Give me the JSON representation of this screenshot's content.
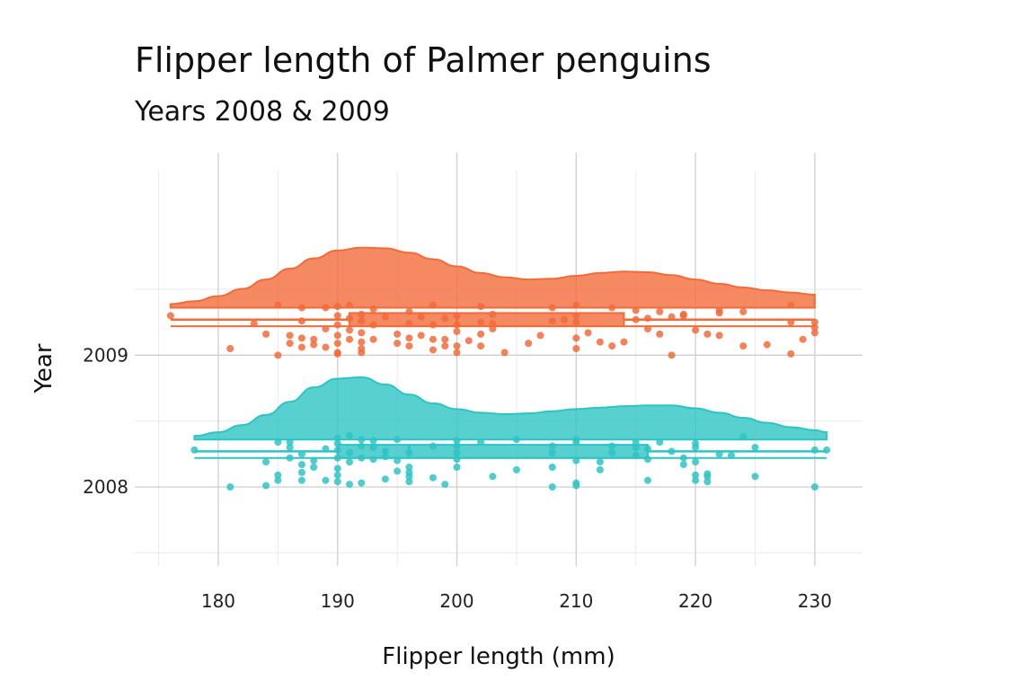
{
  "chart_data": {
    "type": "raincloud",
    "title": "Flipper length of Palmer penguins",
    "subtitle": "Years 2008 & 2009",
    "xlabel": "Flipper length (mm)",
    "ylabel": "Year",
    "xlim": [
      173,
      234
    ],
    "x_ticks": [
      180,
      190,
      200,
      210,
      220,
      230
    ],
    "categories": [
      "2008",
      "2009"
    ],
    "grid": true,
    "colors": {
      "2008": "#2ec4c4",
      "2009": "#f26b3a"
    },
    "series": [
      {
        "name": "2008",
        "color": "#2ec4c4",
        "box": {
          "min": 178,
          "q1": 190,
          "median": 196,
          "q3": 216,
          "max": 231
        },
        "density": [
          [
            178,
            0.05
          ],
          [
            180,
            0.1
          ],
          [
            182,
            0.2
          ],
          [
            184,
            0.34
          ],
          [
            186,
            0.52
          ],
          [
            188,
            0.72
          ],
          [
            190,
            0.84
          ],
          [
            192,
            0.86
          ],
          [
            194,
            0.76
          ],
          [
            196,
            0.62
          ],
          [
            198,
            0.5
          ],
          [
            200,
            0.42
          ],
          [
            202,
            0.37
          ],
          [
            204,
            0.35
          ],
          [
            206,
            0.36
          ],
          [
            208,
            0.39
          ],
          [
            210,
            0.42
          ],
          [
            212,
            0.44
          ],
          [
            214,
            0.46
          ],
          [
            216,
            0.47
          ],
          [
            218,
            0.47
          ],
          [
            220,
            0.43
          ],
          [
            222,
            0.37
          ],
          [
            224,
            0.3
          ],
          [
            226,
            0.23
          ],
          [
            228,
            0.17
          ],
          [
            230,
            0.13
          ],
          [
            231,
            0.1
          ]
        ],
        "points": [
          [
            178,
            0.28
          ],
          [
            181,
            0.0
          ],
          [
            184,
            0.19
          ],
          [
            184,
            0.01
          ],
          [
            185,
            0.34
          ],
          [
            185,
            0.09
          ],
          [
            185,
            0.05
          ],
          [
            186,
            0.3
          ],
          [
            186,
            0.22
          ],
          [
            186,
            0.34
          ],
          [
            187,
            0.25
          ],
          [
            187,
            0.17
          ],
          [
            187,
            0.11
          ],
          [
            187,
            0.05
          ],
          [
            188,
            0.2
          ],
          [
            188,
            0.15
          ],
          [
            189,
            0.29
          ],
          [
            189,
            0.05
          ],
          [
            190,
            0.37
          ],
          [
            190,
            0.33
          ],
          [
            190,
            0.28
          ],
          [
            190,
            0.22
          ],
          [
            190,
            0.14
          ],
          [
            190,
            0.09
          ],
          [
            190,
            0.04
          ],
          [
            191,
            0.39
          ],
          [
            191,
            0.19
          ],
          [
            191,
            0.26
          ],
          [
            191,
            0.02
          ],
          [
            192,
            0.31
          ],
          [
            192,
            0.36
          ],
          [
            192,
            0.22
          ],
          [
            192,
            0.03
          ],
          [
            193,
            0.35
          ],
          [
            193,
            0.21
          ],
          [
            193,
            0.3
          ],
          [
            194,
            0.27
          ],
          [
            194,
            0.23
          ],
          [
            194,
            0.06
          ],
          [
            195,
            0.36
          ],
          [
            195,
            0.2
          ],
          [
            195,
            0.12
          ],
          [
            196,
            0.26
          ],
          [
            196,
            0.15
          ],
          [
            196,
            0.04
          ],
          [
            196,
            0.08
          ],
          [
            196,
            0.11
          ],
          [
            198,
            0.31
          ],
          [
            198,
            0.07
          ],
          [
            199,
            0.02
          ],
          [
            200,
            0.35
          ],
          [
            200,
            0.31
          ],
          [
            200,
            0.26
          ],
          [
            200,
            0.21
          ],
          [
            200,
            0.15
          ],
          [
            202,
            0.34
          ],
          [
            203,
            0.08
          ],
          [
            205,
            0.36
          ],
          [
            205,
            0.13
          ],
          [
            208,
            0.31
          ],
          [
            208,
            0.26
          ],
          [
            208,
            0.15
          ],
          [
            208,
            0.0
          ],
          [
            210,
            0.36
          ],
          [
            210,
            0.34
          ],
          [
            210,
            0.2
          ],
          [
            210,
            0.03
          ],
          [
            210,
            0.01
          ],
          [
            212,
            0.19
          ],
          [
            212,
            0.13
          ],
          [
            213,
            0.26
          ],
          [
            213,
            0.31
          ],
          [
            215,
            0.3
          ],
          [
            215,
            0.34
          ],
          [
            215,
            0.24
          ],
          [
            216,
            0.29
          ],
          [
            216,
            0.21
          ],
          [
            216,
            0.05
          ],
          [
            217,
            0.34
          ],
          [
            218,
            0.27
          ],
          [
            219,
            0.22
          ],
          [
            219,
            0.17
          ],
          [
            220,
            0.33
          ],
          [
            220,
            0.3
          ],
          [
            220,
            0.19
          ],
          [
            220,
            0.09
          ],
          [
            220,
            0.05
          ],
          [
            221,
            0.1
          ],
          [
            221,
            0.08
          ],
          [
            221,
            0.04
          ],
          [
            222,
            0.25
          ],
          [
            223,
            0.24
          ],
          [
            224,
            0.38
          ],
          [
            225,
            0.3
          ],
          [
            225,
            0.08
          ],
          [
            230,
            0.28
          ],
          [
            230,
            0.0
          ],
          [
            231,
            0.28
          ]
        ]
      },
      {
        "name": "2009",
        "color": "#f26b3a",
        "box": {
          "min": 176,
          "q1": 191,
          "median": 200,
          "q3": 214,
          "max": 230
        },
        "density": [
          [
            176,
            0.05
          ],
          [
            178,
            0.09
          ],
          [
            180,
            0.16
          ],
          [
            182,
            0.26
          ],
          [
            184,
            0.39
          ],
          [
            186,
            0.54
          ],
          [
            188,
            0.68
          ],
          [
            190,
            0.79
          ],
          [
            192,
            0.83
          ],
          [
            194,
            0.82
          ],
          [
            196,
            0.76
          ],
          [
            198,
            0.67
          ],
          [
            200,
            0.57
          ],
          [
            202,
            0.48
          ],
          [
            204,
            0.42
          ],
          [
            206,
            0.39
          ],
          [
            208,
            0.4
          ],
          [
            210,
            0.44
          ],
          [
            212,
            0.48
          ],
          [
            214,
            0.5
          ],
          [
            216,
            0.49
          ],
          [
            218,
            0.45
          ],
          [
            220,
            0.39
          ],
          [
            222,
            0.33
          ],
          [
            224,
            0.28
          ],
          [
            226,
            0.24
          ],
          [
            228,
            0.21
          ],
          [
            230,
            0.18
          ]
        ],
        "points": [
          [
            176,
            0.3
          ],
          [
            181,
            0.05
          ],
          [
            183,
            0.24
          ],
          [
            184,
            0.16
          ],
          [
            185,
            0.38
          ],
          [
            185,
            0.0
          ],
          [
            186,
            0.15
          ],
          [
            186,
            0.09
          ],
          [
            187,
            0.36
          ],
          [
            187,
            0.26
          ],
          [
            187,
            0.13
          ],
          [
            187,
            0.06
          ],
          [
            188,
            0.12
          ],
          [
            188,
            0.08
          ],
          [
            189,
            0.36
          ],
          [
            189,
            0.2
          ],
          [
            189,
            0.06
          ],
          [
            190,
            0.37
          ],
          [
            190,
            0.3
          ],
          [
            190,
            0.23
          ],
          [
            190,
            0.15
          ],
          [
            190,
            0.09
          ],
          [
            190,
            0.01
          ],
          [
            190,
            0.02
          ],
          [
            191,
            0.38
          ],
          [
            191,
            0.28
          ],
          [
            191,
            0.19
          ],
          [
            191,
            0.12
          ],
          [
            192,
            0.31
          ],
          [
            192,
            0.26
          ],
          [
            192,
            0.17
          ],
          [
            192,
            0.1
          ],
          [
            192,
            0.05
          ],
          [
            192,
            0.02
          ],
          [
            193,
            0.12
          ],
          [
            193,
            0.23
          ],
          [
            193,
            0.35
          ],
          [
            194,
            0.29
          ],
          [
            195,
            0.16
          ],
          [
            195,
            0.09
          ],
          [
            196,
            0.24
          ],
          [
            196,
            0.13
          ],
          [
            196,
            0.07
          ],
          [
            196,
            0.33
          ],
          [
            197,
            0.29
          ],
          [
            197,
            0.15
          ],
          [
            198,
            0.38
          ],
          [
            198,
            0.23
          ],
          [
            198,
            0.12
          ],
          [
            198,
            0.04
          ],
          [
            199,
            0.28
          ],
          [
            199,
            0.07
          ],
          [
            199,
            0.12
          ],
          [
            200,
            0.3
          ],
          [
            200,
            0.23
          ],
          [
            200,
            0.18
          ],
          [
            200,
            0.07
          ],
          [
            200,
            0.02
          ],
          [
            201,
            0.11
          ],
          [
            202,
            0.37
          ],
          [
            202,
            0.25
          ],
          [
            202,
            0.16
          ],
          [
            202,
            0.07
          ],
          [
            203,
            0.31
          ],
          [
            203,
            0.24
          ],
          [
            203,
            0.2
          ],
          [
            204,
            0.02
          ],
          [
            206,
            0.09
          ],
          [
            207,
            0.15
          ],
          [
            208,
            0.36
          ],
          [
            208,
            0.26
          ],
          [
            209,
            0.27
          ],
          [
            210,
            0.38
          ],
          [
            210,
            0.3
          ],
          [
            210,
            0.25
          ],
          [
            210,
            0.13
          ],
          [
            210,
            0.05
          ],
          [
            211,
            0.17
          ],
          [
            212,
            0.1
          ],
          [
            213,
            0.07
          ],
          [
            213,
            0.36
          ],
          [
            214,
            0.1
          ],
          [
            215,
            0.34
          ],
          [
            215,
            0.27
          ],
          [
            216,
            0.28
          ],
          [
            216,
            0.2
          ],
          [
            217,
            0.33
          ],
          [
            217,
            0.16
          ],
          [
            218,
            0.29
          ],
          [
            218,
            0.0
          ],
          [
            219,
            0.31
          ],
          [
            219,
            0.3
          ],
          [
            220,
            0.19
          ],
          [
            221,
            0.16
          ],
          [
            222,
            0.34
          ],
          [
            222,
            0.15
          ],
          [
            222,
            0.32
          ],
          [
            224,
            0.33
          ],
          [
            224,
            0.07
          ],
          [
            226,
            0.08
          ],
          [
            228,
            0.38
          ],
          [
            228,
            0.25
          ],
          [
            228,
            0.01
          ],
          [
            229,
            0.12
          ],
          [
            230,
            0.25
          ],
          [
            230,
            0.21
          ],
          [
            230,
            0.17
          ]
        ]
      }
    ]
  }
}
